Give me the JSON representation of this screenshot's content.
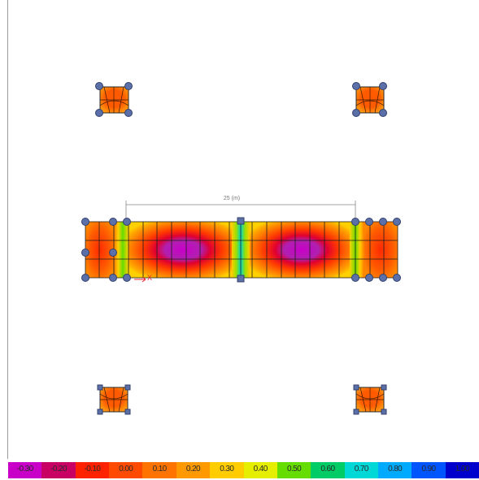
{
  "dimension_label": "25 (m)",
  "axis_label": "X",
  "legend": {
    "labels": [
      "-0.30",
      "-0.20",
      "-0.10",
      "0.00",
      "0.10",
      "0.20",
      "0.30",
      "0.40",
      "0.50",
      "0.60",
      "0.70",
      "0.80",
      "0.90",
      "1.00"
    ],
    "colors": [
      "#c800c8",
      "#c80064",
      "#ff2200",
      "#ff4a00",
      "#ff7300",
      "#ff9900",
      "#ffcc00",
      "#e6ee00",
      "#66dd00",
      "#00cc66",
      "#00d8d8",
      "#00aaff",
      "#0055ff",
      "#0000cc"
    ]
  },
  "colors": {
    "outline": "#2a2a2a",
    "support_fill": "#5b6fa8",
    "support_stroke": "#33406b",
    "background": "#ffffff"
  }
}
